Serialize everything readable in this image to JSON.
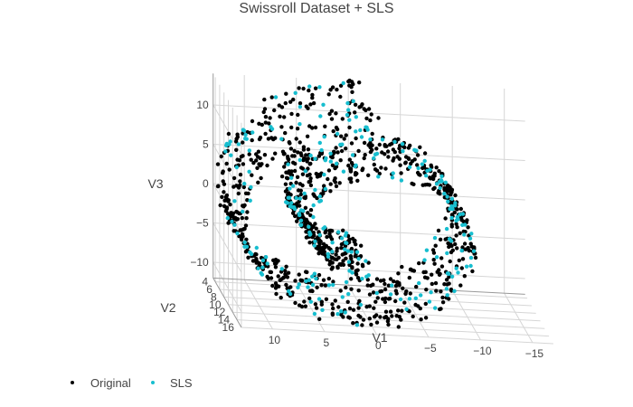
{
  "chart_data": {
    "type": "scatter",
    "title": "Swissroll Dataset + SLS",
    "axes": {
      "V1": {
        "label": "V1",
        "ticks": [
          -15,
          -10,
          -5,
          0,
          5,
          10
        ],
        "range": [
          -17,
          13
        ]
      },
      "V2": {
        "label": "V2",
        "ticks": [
          4,
          6,
          8,
          10,
          12,
          14,
          16
        ],
        "range": [
          3,
          16
        ]
      },
      "V3": {
        "label": "V3",
        "ticks": [
          -10,
          -5,
          0,
          5,
          10
        ],
        "range": [
          -12,
          14
        ]
      }
    },
    "grid": true,
    "legend_placement": "bottom-left",
    "series": [
      {
        "name": "Original",
        "color": "#000000",
        "n_points": 1000
      },
      {
        "name": "SLS",
        "color": "#17becf",
        "n_points": 250
      }
    ],
    "structure": "swiss roll spiral, x = t*cos(t), z = t*sin(t), t from 4.7 to 14.2 rad, y uniform from 3 to 16"
  },
  "legend": {
    "original_label": "Original",
    "sls_label": "SLS"
  }
}
